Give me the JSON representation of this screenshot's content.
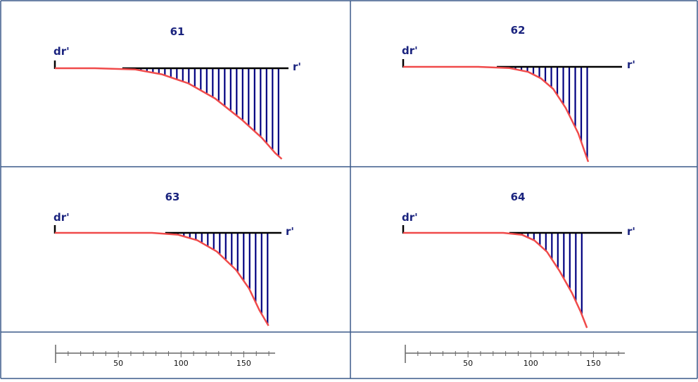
{
  "chart_data": [
    {
      "type": "line",
      "title": "61",
      "ylabel": "dr'",
      "xlabel": "r'",
      "x": [
        0,
        30,
        60,
        80,
        100,
        120,
        140,
        155,
        165,
        170
      ],
      "y": [
        0,
        0,
        -2,
        -10,
        -25,
        -50,
        -85,
        -115,
        -140,
        -150
      ],
      "xlim": [
        0,
        175
      ],
      "ylim": [
        -150,
        0
      ],
      "axis_color": "#000000",
      "curve_color": "#f04a4a",
      "fill_color": "#000080"
    },
    {
      "type": "line",
      "title": "62",
      "ylabel": "dr'",
      "xlabel": "r'",
      "x": [
        0,
        60,
        85,
        100,
        110,
        120,
        130,
        140,
        148
      ],
      "y": [
        0,
        0,
        -2,
        -8,
        -18,
        -35,
        -65,
        -105,
        -150
      ],
      "xlim": [
        0,
        175
      ],
      "ylim": [
        -150,
        0
      ],
      "axis_color": "#000000",
      "curve_color": "#f04a4a",
      "fill_color": "#000080"
    },
    {
      "type": "line",
      "title": "63",
      "ylabel": "dr'",
      "xlabel": "r'",
      "x": [
        0,
        75,
        95,
        110,
        125,
        140,
        150,
        158,
        165
      ],
      "y": [
        0,
        0,
        -3,
        -12,
        -30,
        -60,
        -90,
        -125,
        -150
      ],
      "xlim": [
        0,
        175
      ],
      "ylim": [
        -150,
        0
      ],
      "axis_color": "#000000",
      "curve_color": "#f04a4a",
      "fill_color": "#000080"
    },
    {
      "type": "line",
      "title": "64",
      "ylabel": "dr'",
      "xlabel": "r'",
      "x": [
        0,
        80,
        95,
        105,
        115,
        125,
        135,
        142,
        147
      ],
      "y": [
        0,
        0,
        -3,
        -12,
        -30,
        -60,
        -95,
        -125,
        -150
      ],
      "xlim": [
        0,
        175
      ],
      "ylim": [
        -150,
        0
      ],
      "axis_color": "#000000",
      "curve_color": "#f04a4a",
      "fill_color": "#000080"
    }
  ],
  "scales": [
    {
      "ticks": [
        50,
        100,
        150
      ],
      "range": [
        0,
        175
      ],
      "minor_step": 10
    },
    {
      "ticks": [
        50,
        100,
        150
      ],
      "range": [
        0,
        175
      ],
      "minor_step": 10
    }
  ],
  "colors": {
    "border": "#3b5a8a",
    "text": "#1a237e",
    "scale": "#666666"
  }
}
